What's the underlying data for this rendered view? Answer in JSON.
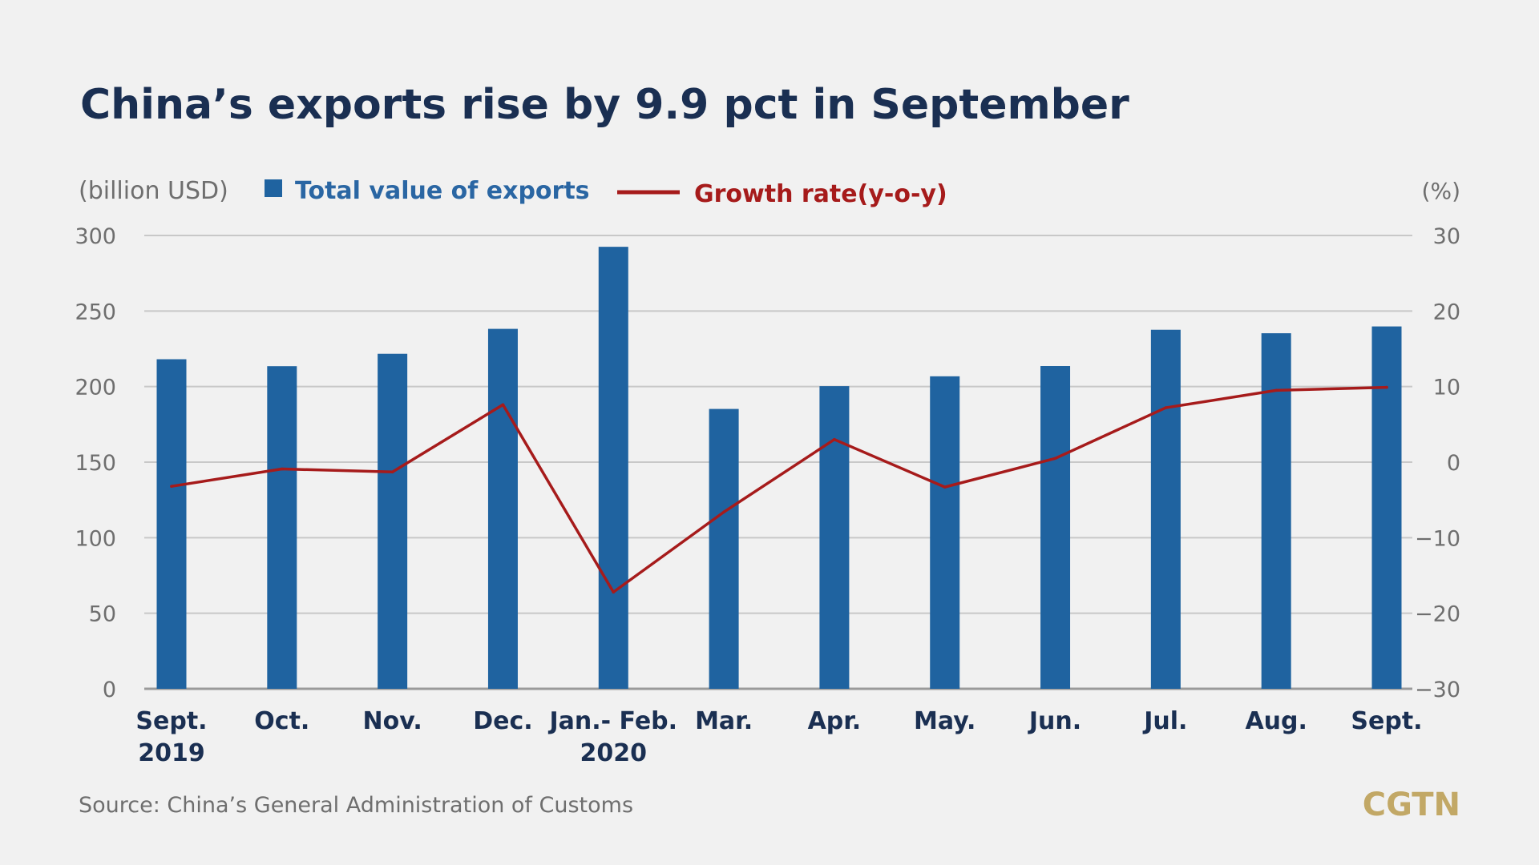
{
  "colors": {
    "background": "#f1f1f1",
    "bar": "#1f63a0",
    "line": "#a61b1b",
    "title": "#1a2f52",
    "axis_text": "#6e6e6e",
    "grid": "#c8c8c8",
    "logo": "#c2a866"
  },
  "header": {
    "title": "China’s exports rise by 9.9 pct in September"
  },
  "legend": {
    "left_unit": "(billion USD)",
    "bars_label": "Total value of exports",
    "line_label": "Growth rate(y-o-y)",
    "right_unit": "(%)"
  },
  "footer": {
    "source": "Source: China’s General Administration of Customs",
    "logo": "CGTN"
  },
  "chart_data": {
    "type": "bar",
    "title": "China’s exports rise by 9.9 pct in September",
    "categories": [
      "Sept.",
      "Oct.",
      "Nov.",
      "Dec.",
      "Jan.- Feb.",
      "Mar.",
      "Apr.",
      "May.",
      "Jun.",
      "Jul.",
      "Aug.",
      "Sept."
    ],
    "category_sublabels": [
      "2019",
      "",
      "",
      "",
      "2020",
      "",
      "",
      "",
      "",
      "",
      "",
      ""
    ],
    "series": [
      {
        "name": "Total value of exports",
        "type": "bar",
        "axis": "left",
        "values": [
          218.1,
          213.5,
          221.7,
          238.2,
          292.5,
          185.2,
          200.3,
          206.8,
          213.6,
          237.6,
          235.3,
          239.8
        ]
      },
      {
        "name": "Growth rate(y-o-y)",
        "type": "line",
        "axis": "right",
        "values": [
          -3.2,
          -0.9,
          -1.3,
          7.6,
          -17.2,
          -6.6,
          3.0,
          -3.3,
          0.5,
          7.2,
          9.5,
          9.9
        ]
      }
    ],
    "y_left": {
      "label": "(billion USD)",
      "ylim": [
        0,
        300
      ],
      "ticks": [
        0,
        50,
        100,
        150,
        200,
        250,
        300
      ]
    },
    "y_right": {
      "label": "(%)",
      "ylim": [
        -30,
        30
      ],
      "ticks": [
        -30,
        -20,
        -10,
        0,
        10,
        20,
        30
      ]
    },
    "grid": true,
    "legend_position": "top"
  }
}
